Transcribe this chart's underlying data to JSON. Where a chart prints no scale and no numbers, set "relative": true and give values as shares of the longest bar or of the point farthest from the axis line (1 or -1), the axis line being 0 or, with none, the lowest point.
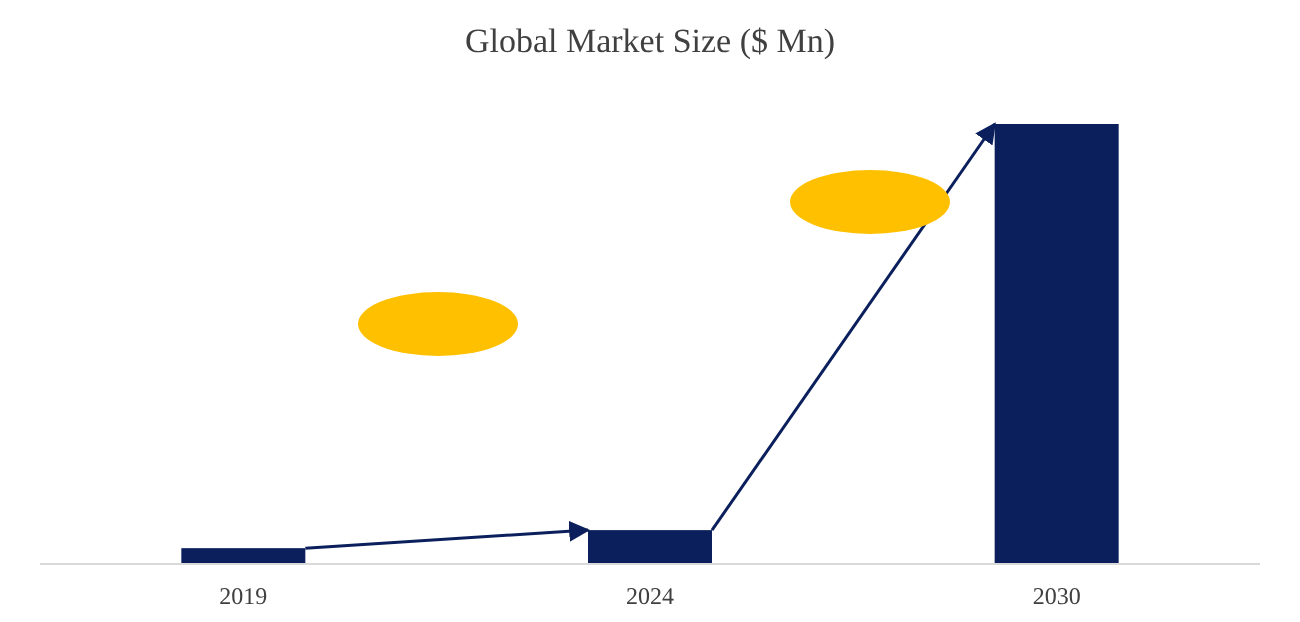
{
  "chart_data": {
    "type": "bar",
    "title": "Global Market Size ($ Mn)",
    "relative": true,
    "categories": [
      "2019",
      "2024",
      "2030"
    ],
    "values": [
      0.036,
      0.077,
      1
    ],
    "color": "#0b1f5c"
  }
}
